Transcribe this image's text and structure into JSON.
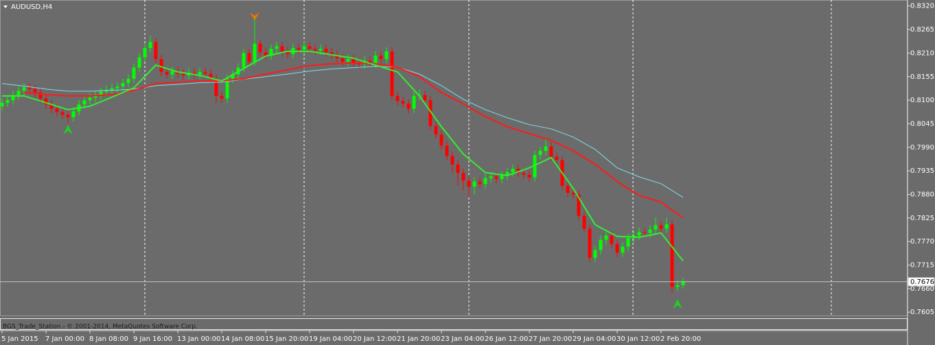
{
  "chart_data": {
    "type": "candlestick",
    "title": "AUDUSD,H4",
    "up_color": "#00ff00",
    "down_color": "#ff0000",
    "ylim": [
      0.7594,
      0.8334
    ],
    "yticks": [
      {
        "value": 0.832,
        "label": "0.8320"
      },
      0.8265,
      {
        "value": 0.821,
        "label": "0.8210"
      },
      0.8155,
      {
        "value": 0.81,
        "label": "0.8100"
      },
      0.8045,
      {
        "value": 0.799,
        "label": "0.7990"
      },
      0.7935,
      {
        "value": 0.788,
        "label": "0.7880"
      },
      0.7825,
      {
        "value": 0.777,
        "label": "0.7770"
      },
      0.7715,
      {
        "value": 0.766,
        "label": "0.7660"
      },
      0.7605
    ],
    "last_price": 0.7676,
    "categories": [
      "5 Jan 2015",
      null,
      null,
      null,
      null,
      null,
      null,
      null,
      "7 Jan 00:00",
      null,
      null,
      null,
      null,
      null,
      null,
      null,
      "8 Jan 08:00",
      null,
      null,
      null,
      null,
      null,
      null,
      null,
      "9 Jan 16:00",
      null,
      null,
      null,
      null,
      null,
      null,
      null,
      "13 Jan 00:00",
      null,
      null,
      null,
      null,
      null,
      null,
      null,
      "14 Jan 08:00",
      null,
      null,
      null,
      null,
      null,
      null,
      null,
      "15 Jan 20:00",
      null,
      null,
      null,
      null,
      null,
      null,
      null,
      "19 Jan 04:00",
      null,
      null,
      null,
      null,
      null,
      null,
      null,
      "20 Jan 12:00",
      null,
      null,
      null,
      null,
      null,
      null,
      null,
      "21 Jan 20:00",
      null,
      null,
      null,
      null,
      null,
      null,
      null,
      "23 Jan 04:00",
      null,
      null,
      null,
      null,
      null,
      null,
      null,
      "26 Jan 12:00",
      null,
      null,
      null,
      null,
      null,
      null,
      null,
      "27 Jan 20:00",
      null,
      null,
      null,
      null,
      null,
      null,
      null,
      "29 Jan 04:00",
      null,
      null,
      null,
      null,
      null,
      null,
      null,
      "30 Jan 12:00",
      null,
      null,
      null,
      null,
      null,
      null,
      null,
      "2 Feb 20:00",
      null,
      null,
      null,
      null
    ],
    "ohlc": [
      [
        0.8086,
        0.8104,
        0.8076,
        0.8094
      ],
      [
        0.8094,
        0.811,
        0.8084,
        0.81
      ],
      [
        0.81,
        0.8122,
        0.809,
        0.8112
      ],
      [
        0.8112,
        0.8132,
        0.8102,
        0.8122
      ],
      [
        0.8122,
        0.814,
        0.8112,
        0.813
      ],
      [
        0.813,
        0.814,
        0.8116,
        0.8126
      ],
      [
        0.8126,
        0.8136,
        0.8108,
        0.8118
      ],
      [
        0.8118,
        0.8128,
        0.8094,
        0.8104
      ],
      [
        0.8104,
        0.8114,
        0.808,
        0.809
      ],
      [
        0.809,
        0.81,
        0.807,
        0.808
      ],
      [
        0.808,
        0.809,
        0.8062,
        0.8072
      ],
      [
        0.8072,
        0.8082,
        0.8056,
        0.8066
      ],
      [
        0.8066,
        0.8076,
        0.8046,
        0.806
      ],
      [
        0.806,
        0.8084,
        0.805,
        0.8074
      ],
      [
        0.8074,
        0.81,
        0.8064,
        0.809
      ],
      [
        0.809,
        0.811,
        0.808,
        0.81
      ],
      [
        0.81,
        0.8116,
        0.809,
        0.8106
      ],
      [
        0.8106,
        0.8122,
        0.8096,
        0.8112
      ],
      [
        0.8112,
        0.813,
        0.8102,
        0.812
      ],
      [
        0.812,
        0.8134,
        0.811,
        0.8124
      ],
      [
        0.8124,
        0.8138,
        0.8114,
        0.8128
      ],
      [
        0.8128,
        0.8142,
        0.8118,
        0.8132
      ],
      [
        0.8132,
        0.815,
        0.8122,
        0.814
      ],
      [
        0.814,
        0.816,
        0.813,
        0.815
      ],
      [
        0.815,
        0.8186,
        0.814,
        0.8176
      ],
      [
        0.8176,
        0.821,
        0.8166,
        0.82
      ],
      [
        0.82,
        0.8232,
        0.819,
        0.8222
      ],
      [
        0.8222,
        0.8251,
        0.8212,
        0.8236
      ],
      [
        0.8236,
        0.8246,
        0.8186,
        0.8196
      ],
      [
        0.8196,
        0.8206,
        0.8156,
        0.8166
      ],
      [
        0.8166,
        0.8176,
        0.815,
        0.816
      ],
      [
        0.816,
        0.8178,
        0.815,
        0.8168
      ],
      [
        0.8168,
        0.8178,
        0.8152,
        0.8162
      ],
      [
        0.8162,
        0.8172,
        0.8148,
        0.8158
      ],
      [
        0.8158,
        0.8174,
        0.8148,
        0.8164
      ],
      [
        0.8164,
        0.8174,
        0.815,
        0.816
      ],
      [
        0.816,
        0.8176,
        0.815,
        0.8166
      ],
      [
        0.8166,
        0.8176,
        0.8152,
        0.8162
      ],
      [
        0.8162,
        0.8172,
        0.814,
        0.815
      ],
      [
        0.815,
        0.816,
        0.8094,
        0.811
      ],
      [
        0.811,
        0.812,
        0.8094,
        0.8104
      ],
      [
        0.8104,
        0.816,
        0.8094,
        0.815
      ],
      [
        0.815,
        0.817,
        0.814,
        0.816
      ],
      [
        0.816,
        0.8186,
        0.815,
        0.8176
      ],
      [
        0.8176,
        0.822,
        0.8166,
        0.821
      ],
      [
        0.821,
        0.822,
        0.818,
        0.819
      ],
      [
        0.819,
        0.8294,
        0.818,
        0.8232
      ],
      [
        0.8232,
        0.8242,
        0.8202,
        0.8212
      ],
      [
        0.8212,
        0.8222,
        0.8194,
        0.8204
      ],
      [
        0.8204,
        0.823,
        0.8194,
        0.822
      ],
      [
        0.822,
        0.8236,
        0.821,
        0.8226
      ],
      [
        0.8226,
        0.8236,
        0.8204,
        0.8214
      ],
      [
        0.8214,
        0.8224,
        0.8198,
        0.8208
      ],
      [
        0.8208,
        0.8232,
        0.8198,
        0.8222
      ],
      [
        0.8222,
        0.8232,
        0.8208,
        0.8218
      ],
      [
        0.8218,
        0.8236,
        0.8208,
        0.8226
      ],
      [
        0.8226,
        0.8236,
        0.821,
        0.822
      ],
      [
        0.822,
        0.823,
        0.8206,
        0.8216
      ],
      [
        0.8216,
        0.823,
        0.8206,
        0.822
      ],
      [
        0.822,
        0.823,
        0.8202,
        0.8212
      ],
      [
        0.8212,
        0.8222,
        0.8196,
        0.8206
      ],
      [
        0.8206,
        0.8216,
        0.8188,
        0.8198
      ],
      [
        0.8198,
        0.8208,
        0.818,
        0.819
      ],
      [
        0.819,
        0.8206,
        0.818,
        0.8196
      ],
      [
        0.8196,
        0.8206,
        0.8178,
        0.8188
      ],
      [
        0.8188,
        0.8198,
        0.8174,
        0.8184
      ],
      [
        0.8184,
        0.8202,
        0.8174,
        0.8192
      ],
      [
        0.8192,
        0.8202,
        0.8176,
        0.8186
      ],
      [
        0.8186,
        0.8214,
        0.8176,
        0.8204
      ],
      [
        0.8204,
        0.8214,
        0.8186,
        0.8196
      ],
      [
        0.8196,
        0.8224,
        0.8186,
        0.8214
      ],
      [
        0.8214,
        0.8224,
        0.81,
        0.811
      ],
      [
        0.811,
        0.812,
        0.8088,
        0.8098
      ],
      [
        0.8098,
        0.8108,
        0.8082,
        0.8092
      ],
      [
        0.8092,
        0.8102,
        0.807,
        0.808
      ],
      [
        0.808,
        0.812,
        0.807,
        0.811
      ],
      [
        0.811,
        0.8126,
        0.81,
        0.8112
      ],
      [
        0.8112,
        0.8122,
        0.809,
        0.81
      ],
      [
        0.81,
        0.811,
        0.803,
        0.804
      ],
      [
        0.804,
        0.805,
        0.801,
        0.802
      ],
      [
        0.802,
        0.803,
        0.7984,
        0.7994
      ],
      [
        0.7994,
        0.8004,
        0.796,
        0.797
      ],
      [
        0.797,
        0.798,
        0.793,
        0.795
      ],
      [
        0.795,
        0.796,
        0.79,
        0.793
      ],
      [
        0.793,
        0.794,
        0.789,
        0.7912
      ],
      [
        0.7912,
        0.7922,
        0.7874,
        0.7898
      ],
      [
        0.7898,
        0.792,
        0.788,
        0.791
      ],
      [
        0.791,
        0.792,
        0.7894,
        0.7904
      ],
      [
        0.7904,
        0.7928,
        0.7894,
        0.7918
      ],
      [
        0.7918,
        0.7932,
        0.7908,
        0.7922
      ],
      [
        0.7922,
        0.7932,
        0.7906,
        0.7916
      ],
      [
        0.7916,
        0.7934,
        0.7906,
        0.7924
      ],
      [
        0.7924,
        0.7942,
        0.7914,
        0.7932
      ],
      [
        0.7932,
        0.795,
        0.7922,
        0.794
      ],
      [
        0.794,
        0.795,
        0.792,
        0.793
      ],
      [
        0.793,
        0.794,
        0.7916,
        0.7926
      ],
      [
        0.7926,
        0.7936,
        0.791,
        0.792
      ],
      [
        0.792,
        0.7982,
        0.791,
        0.7972
      ],
      [
        0.7972,
        0.7992,
        0.7962,
        0.7982
      ],
      [
        0.7982,
        0.801,
        0.7972,
        0.7992
      ],
      [
        0.7992,
        0.8002,
        0.7958,
        0.7968
      ],
      [
        0.7968,
        0.7978,
        0.795,
        0.796
      ],
      [
        0.796,
        0.797,
        0.789,
        0.79
      ],
      [
        0.79,
        0.791,
        0.7874,
        0.7884
      ],
      [
        0.7884,
        0.7894,
        0.787,
        0.788
      ],
      [
        0.788,
        0.789,
        0.782,
        0.783
      ],
      [
        0.783,
        0.784,
        0.779,
        0.78
      ],
      [
        0.78,
        0.781,
        0.7722,
        0.7732
      ],
      [
        0.7732,
        0.776,
        0.7722,
        0.775
      ],
      [
        0.775,
        0.7784,
        0.774,
        0.7774
      ],
      [
        0.7774,
        0.7794,
        0.7764,
        0.7784
      ],
      [
        0.7784,
        0.7794,
        0.7754,
        0.7764
      ],
      [
        0.7764,
        0.7774,
        0.7734,
        0.7744
      ],
      [
        0.7744,
        0.7768,
        0.7734,
        0.7758
      ],
      [
        0.7758,
        0.7788,
        0.7748,
        0.7778
      ],
      [
        0.7778,
        0.7794,
        0.7768,
        0.7784
      ],
      [
        0.7784,
        0.7802,
        0.7774,
        0.7792
      ],
      [
        0.7792,
        0.7802,
        0.778,
        0.779
      ],
      [
        0.779,
        0.7808,
        0.778,
        0.7798
      ],
      [
        0.7798,
        0.7826,
        0.7788,
        0.7808
      ],
      [
        0.7808,
        0.7818,
        0.779,
        0.78
      ],
      [
        0.78,
        0.7826,
        0.779,
        0.781
      ],
      [
        0.781,
        0.782,
        0.765,
        0.7664
      ],
      [
        0.7664,
        0.7678,
        0.7654,
        0.7668
      ],
      [
        0.7668,
        0.7686,
        0.766,
        0.7676
      ]
    ],
    "moving_averages": {
      "x": [
        0,
        4,
        8,
        12,
        16,
        20,
        24,
        28,
        32,
        36,
        40,
        44,
        48,
        52,
        56,
        60,
        64,
        68,
        72,
        76,
        80,
        84,
        88,
        92,
        96,
        100,
        104,
        108,
        112,
        116,
        120,
        124
      ],
      "series": [
        {
          "color": "#7fe0ec",
          "values": [
            0.8139,
            0.8133,
            0.8126,
            0.8121,
            0.8121,
            0.8123,
            0.8126,
            0.8134,
            0.8137,
            0.8141,
            0.8142,
            0.8149,
            0.8155,
            0.8161,
            0.8168,
            0.8173,
            0.8176,
            0.8179,
            0.8177,
            0.8161,
            0.8134,
            0.8102,
            0.8078,
            0.8059,
            0.8043,
            0.8033,
            0.8014,
            0.7985,
            0.7942,
            0.7921,
            0.7905,
            0.7873
          ]
        },
        {
          "color": "#ff1a1a",
          "values": [
            null,
            0.8118,
            0.8113,
            0.811,
            0.811,
            0.8113,
            0.8123,
            0.8139,
            0.8142,
            0.8145,
            0.8145,
            0.815,
            0.8161,
            0.8171,
            0.8181,
            0.8185,
            0.8187,
            0.8185,
            0.8177,
            0.8155,
            0.8118,
            0.8091,
            0.8062,
            0.8038,
            0.8022,
            0.8006,
            0.7982,
            0.795,
            0.791,
            0.7878,
            0.7862,
            0.7825
          ]
        },
        {
          "color": "#33ee33",
          "values": [
            0.811,
            0.811,
            0.8094,
            0.8078,
            0.8086,
            0.8107,
            0.8129,
            0.8182,
            0.8166,
            0.8158,
            0.8145,
            0.8174,
            0.8203,
            0.8214,
            0.8214,
            0.8206,
            0.8198,
            0.8182,
            0.8166,
            0.811,
            0.8038,
            0.7974,
            0.7931,
            0.7924,
            0.7942,
            0.7966,
            0.7894,
            0.7809,
            0.7782,
            0.778,
            0.779,
            0.7725
          ]
        }
      ]
    }
  },
  "indicator_window": {
    "title": "BGS_Trade_Station - © 2001-2014, MetaQuotes Software Corp."
  }
}
